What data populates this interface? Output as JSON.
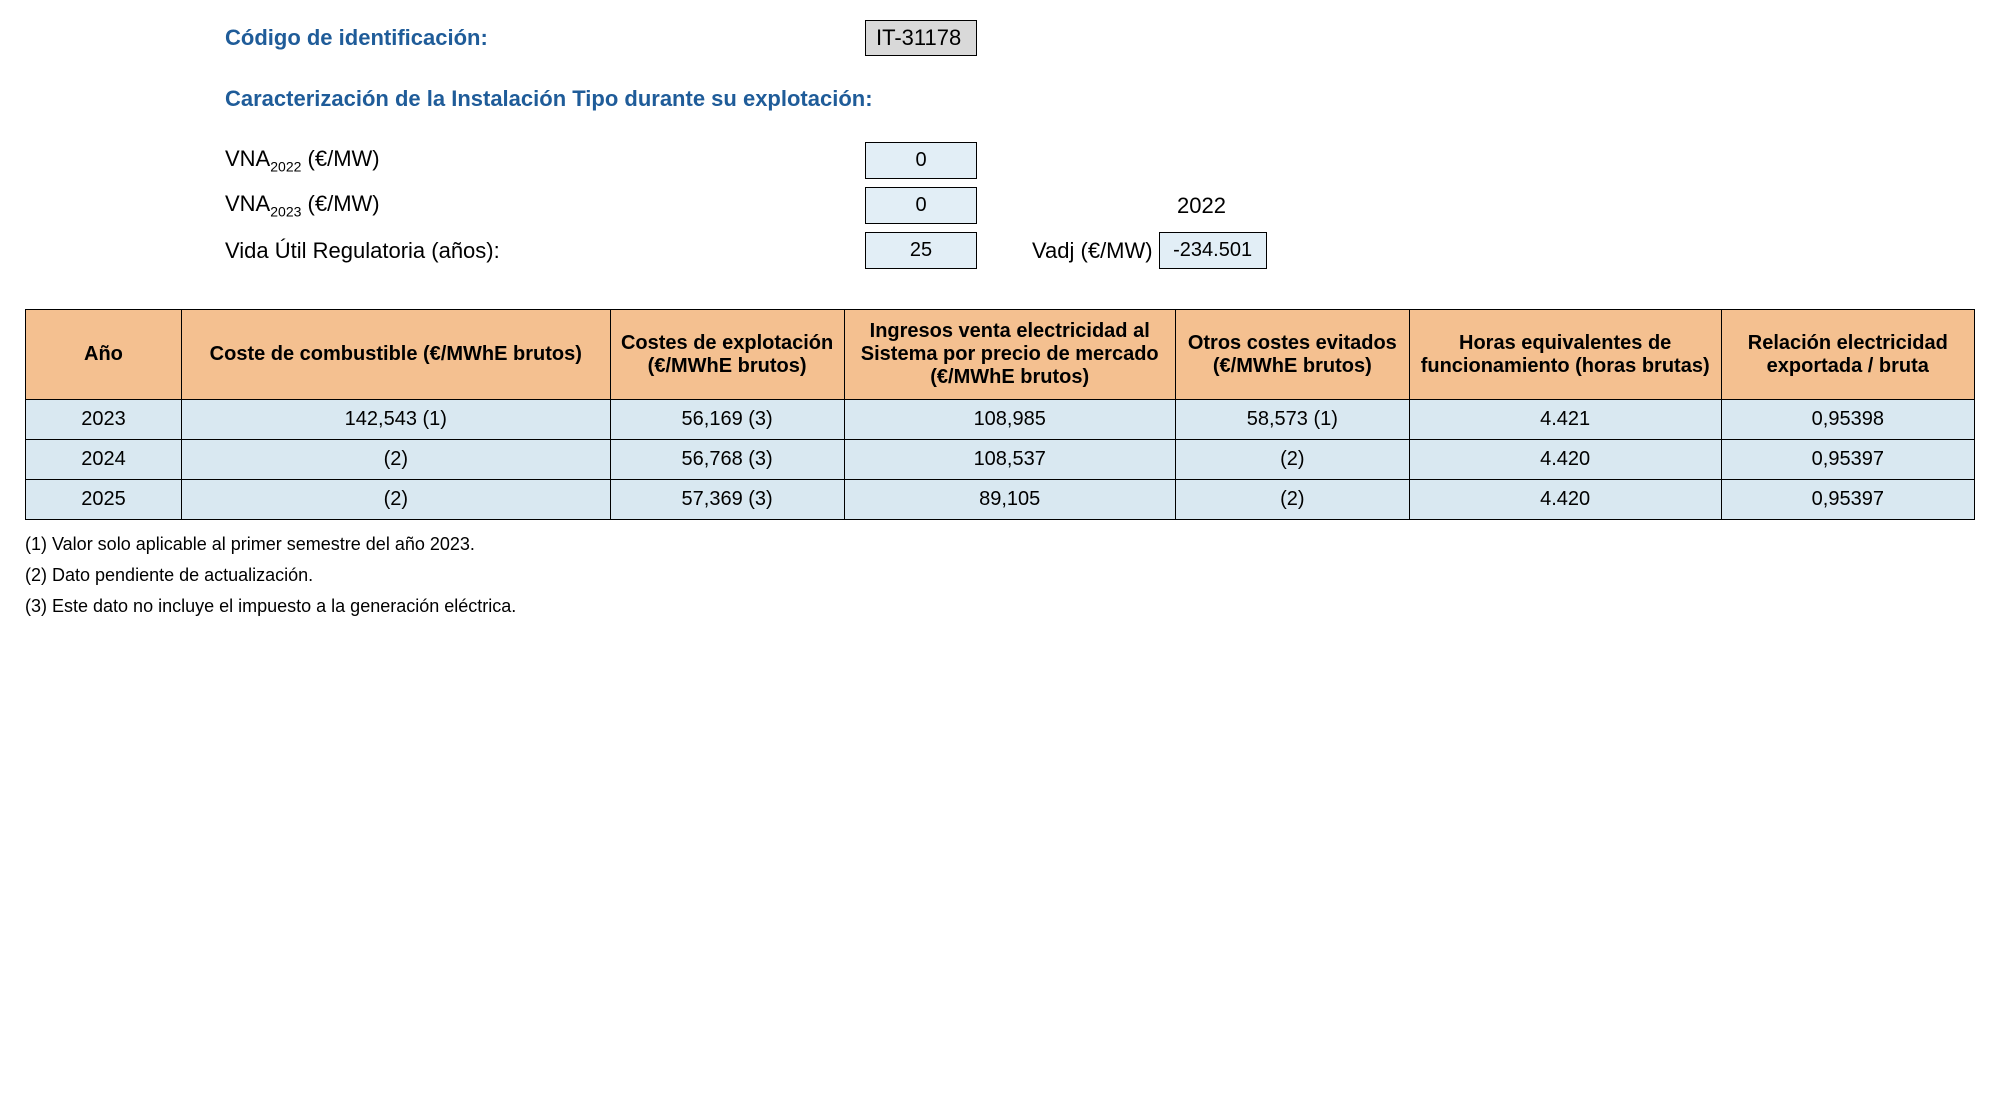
{
  "header": {
    "id_label": "Código de identificación:",
    "id_value": "IT-31178",
    "section_title": "Caracterización de la Instalación Tipo durante su explotación:",
    "params": [
      {
        "label_html": "VNA<sub>2022</sub> (€/MW)",
        "value": "0"
      },
      {
        "label_html": "VNA<sub>2023</sub> (€/MW)",
        "value": "0",
        "extra_year": "2022"
      },
      {
        "label_html": "Vida Útil Regulatoria (años):",
        "value": "25",
        "vadj_label": "Vadj (€/MW)",
        "vadj_value": "-234.501"
      }
    ]
  },
  "table": {
    "columns": [
      "Año",
      "Coste de combustible (€/MWhE brutos)",
      "Costes de explotación (€/MWhE brutos)",
      "Ingresos venta electricidad al Sistema por precio de mercado (€/MWhE brutos)",
      "Otros costes evitados (€/MWhE brutos)",
      "Horas equivalentes de funcionamiento (horas brutas)",
      "Relación electricidad exportada / bruta"
    ],
    "col_widths_pct": [
      8,
      22,
      12,
      17,
      12,
      16,
      13
    ],
    "rows": [
      [
        "2023",
        "142,543 (1)",
        "56,169 (3)",
        "108,985",
        "58,573 (1)",
        "4.421",
        "0,95398"
      ],
      [
        "2024",
        "(2)",
        "56,768 (3)",
        "108,537",
        "(2)",
        "4.420",
        "0,95397"
      ],
      [
        "2025",
        "(2)",
        "57,369 (3)",
        "89,105",
        "(2)",
        "4.420",
        "0,95397"
      ]
    ]
  },
  "footnotes": [
    "(1) Valor solo aplicable al primer semestre del año 2023.",
    "(2) Dato pendiente de actualización.",
    "(3) Este dato no incluye el impuesto a la generación eléctrica."
  ],
  "colors": {
    "header_text": "#1f5c99",
    "id_box_bg": "#d9d9d9",
    "val_box_bg": "#e2eef6",
    "th_bg": "#f4c090",
    "td_bg": "#d9e8f1",
    "border": "#000000"
  }
}
